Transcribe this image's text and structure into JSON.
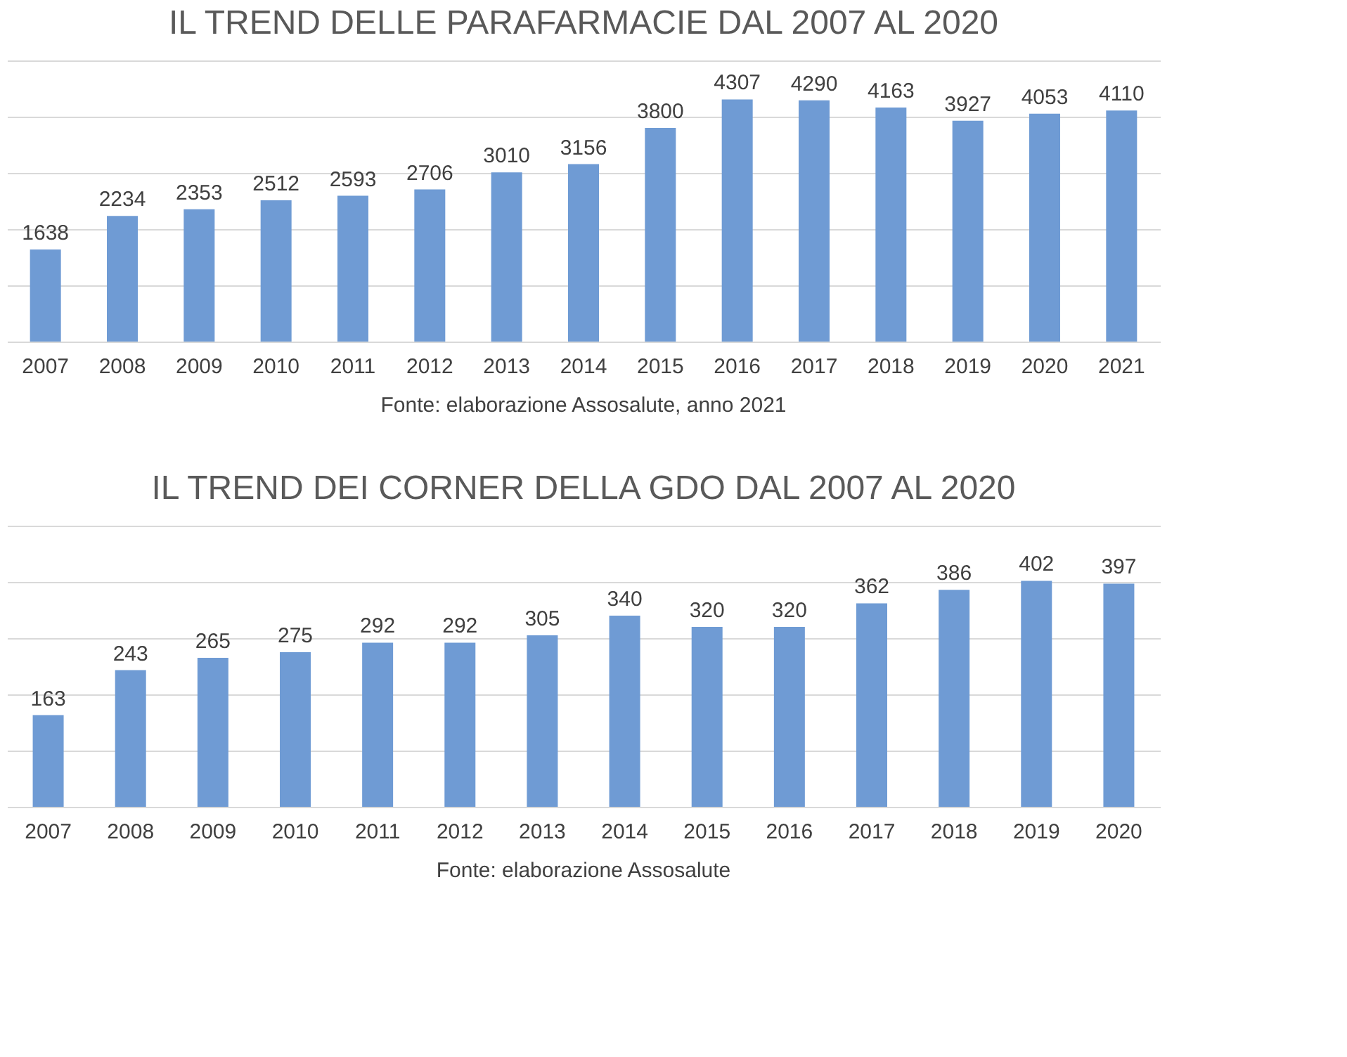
{
  "chart_data": [
    {
      "type": "bar",
      "title": "IL TREND DELLE PARAFARMACIE DAL 2007 AL 2020",
      "categories": [
        "2007",
        "2008",
        "2009",
        "2010",
        "2011",
        "2012",
        "2013",
        "2014",
        "2015",
        "2016",
        "2017",
        "2018",
        "2019",
        "2020",
        "2021"
      ],
      "values": [
        1638,
        2234,
        2353,
        2512,
        2593,
        2706,
        3010,
        3156,
        3800,
        4307,
        4290,
        4163,
        3927,
        4053,
        4110
      ],
      "color": "#6f9bd4",
      "data_labels": true,
      "ylim": [
        0,
        5000
      ],
      "yticks": [
        {
          "value": 0,
          "label": null
        },
        {
          "value": 1000,
          "label": null
        },
        {
          "value": 2000,
          "label": null
        },
        {
          "value": 3000,
          "label": null
        },
        {
          "value": 4000,
          "label": null
        },
        {
          "value": 5000,
          "label": null
        }
      ],
      "tick_labels": "x",
      "grid": "y",
      "annotations": [
        "Fonte: elaborazione Assosalute, anno 2021"
      ]
    },
    {
      "type": "bar",
      "title": "IL TREND DEI CORNER DELLA GDO DAL 2007 AL 2020",
      "categories": [
        "2007",
        "2008",
        "2009",
        "2010",
        "2011",
        "2012",
        "2013",
        "2014",
        "2015",
        "2016",
        "2017",
        "2018",
        "2019",
        "2020"
      ],
      "values": [
        163,
        243,
        265,
        275,
        292,
        292,
        305,
        340,
        320,
        320,
        362,
        386,
        402,
        397
      ],
      "color": "#6f9bd4",
      "data_labels": true,
      "ylim": [
        0,
        500
      ],
      "yticks": [
        {
          "value": 0,
          "label": null
        },
        {
          "value": 100,
          "label": null
        },
        {
          "value": 200,
          "label": null
        },
        {
          "value": 300,
          "label": null
        },
        {
          "value": 400,
          "label": null
        },
        {
          "value": 500,
          "label": null
        }
      ],
      "tick_labels": "x",
      "grid": "y",
      "annotations": [
        "Fonte: elaborazione Assosalute"
      ]
    }
  ]
}
